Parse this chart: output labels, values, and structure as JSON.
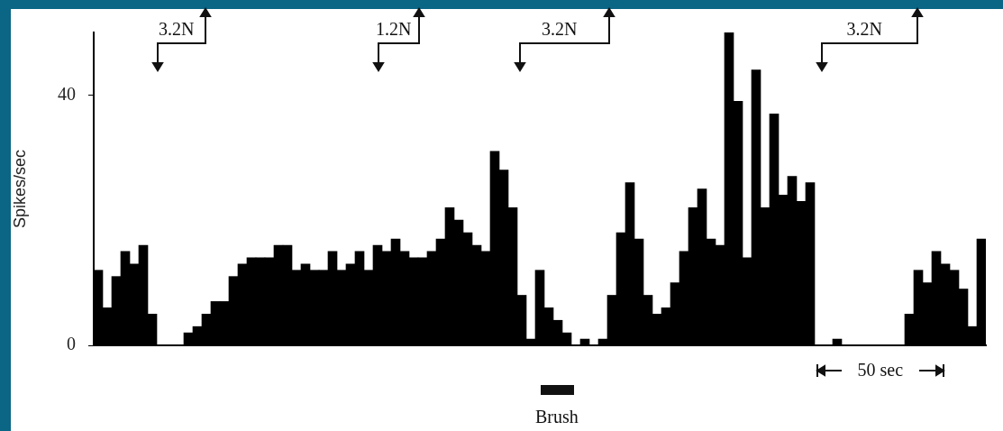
{
  "chart_data": {
    "type": "bar",
    "ylabel": "Spikes/sec",
    "categories": [
      null,
      null,
      null,
      null,
      null,
      null,
      null,
      null,
      null,
      null,
      null,
      null,
      null,
      null,
      null,
      null,
      null,
      null,
      null,
      null,
      null,
      null,
      null,
      null,
      null,
      null,
      null,
      null,
      null,
      null,
      null,
      null,
      null,
      null,
      null,
      null,
      null,
      null,
      null,
      null,
      null,
      null,
      null,
      null,
      null,
      null,
      null,
      null,
      null,
      null,
      null,
      null,
      null,
      null,
      null,
      null,
      null,
      null,
      null,
      null,
      null,
      null,
      null,
      null,
      null,
      null,
      null,
      null,
      null,
      null,
      null,
      null,
      null,
      null,
      null,
      null,
      null,
      null,
      null,
      null,
      null,
      null,
      null,
      null,
      null,
      null,
      null,
      null,
      null,
      null,
      null,
      null,
      null,
      null,
      null,
      null,
      null,
      null,
      null
    ],
    "values": [
      12,
      6,
      11,
      15,
      13,
      16,
      5,
      0,
      0,
      0,
      2,
      3,
      5,
      7,
      7,
      11,
      13,
      14,
      14,
      14,
      16,
      16,
      12,
      13,
      12,
      12,
      15,
      12,
      13,
      15,
      12,
      16,
      15,
      17,
      15,
      14,
      14,
      15,
      17,
      22,
      20,
      18,
      16,
      15,
      31,
      28,
      22,
      8,
      1,
      12,
      6,
      4,
      2,
      0,
      1,
      0,
      1,
      8,
      18,
      26,
      17,
      8,
      5,
      6,
      10,
      15,
      22,
      25,
      17,
      16,
      50,
      39,
      14,
      44,
      22,
      37,
      24,
      27,
      23,
      26,
      0,
      0,
      1,
      0,
      0,
      0,
      0,
      0,
      0,
      0,
      5,
      12,
      10,
      15,
      13,
      12,
      9,
      3,
      17
    ],
    "color": "#000000",
    "ylim": [
      0,
      50
    ],
    "yticks": [
      0,
      40
    ],
    "grid": false,
    "annotations": [
      "3.2N",
      "1.2N",
      "3.2N",
      "3.2N",
      "Brush",
      "50 sec"
    ]
  }
}
